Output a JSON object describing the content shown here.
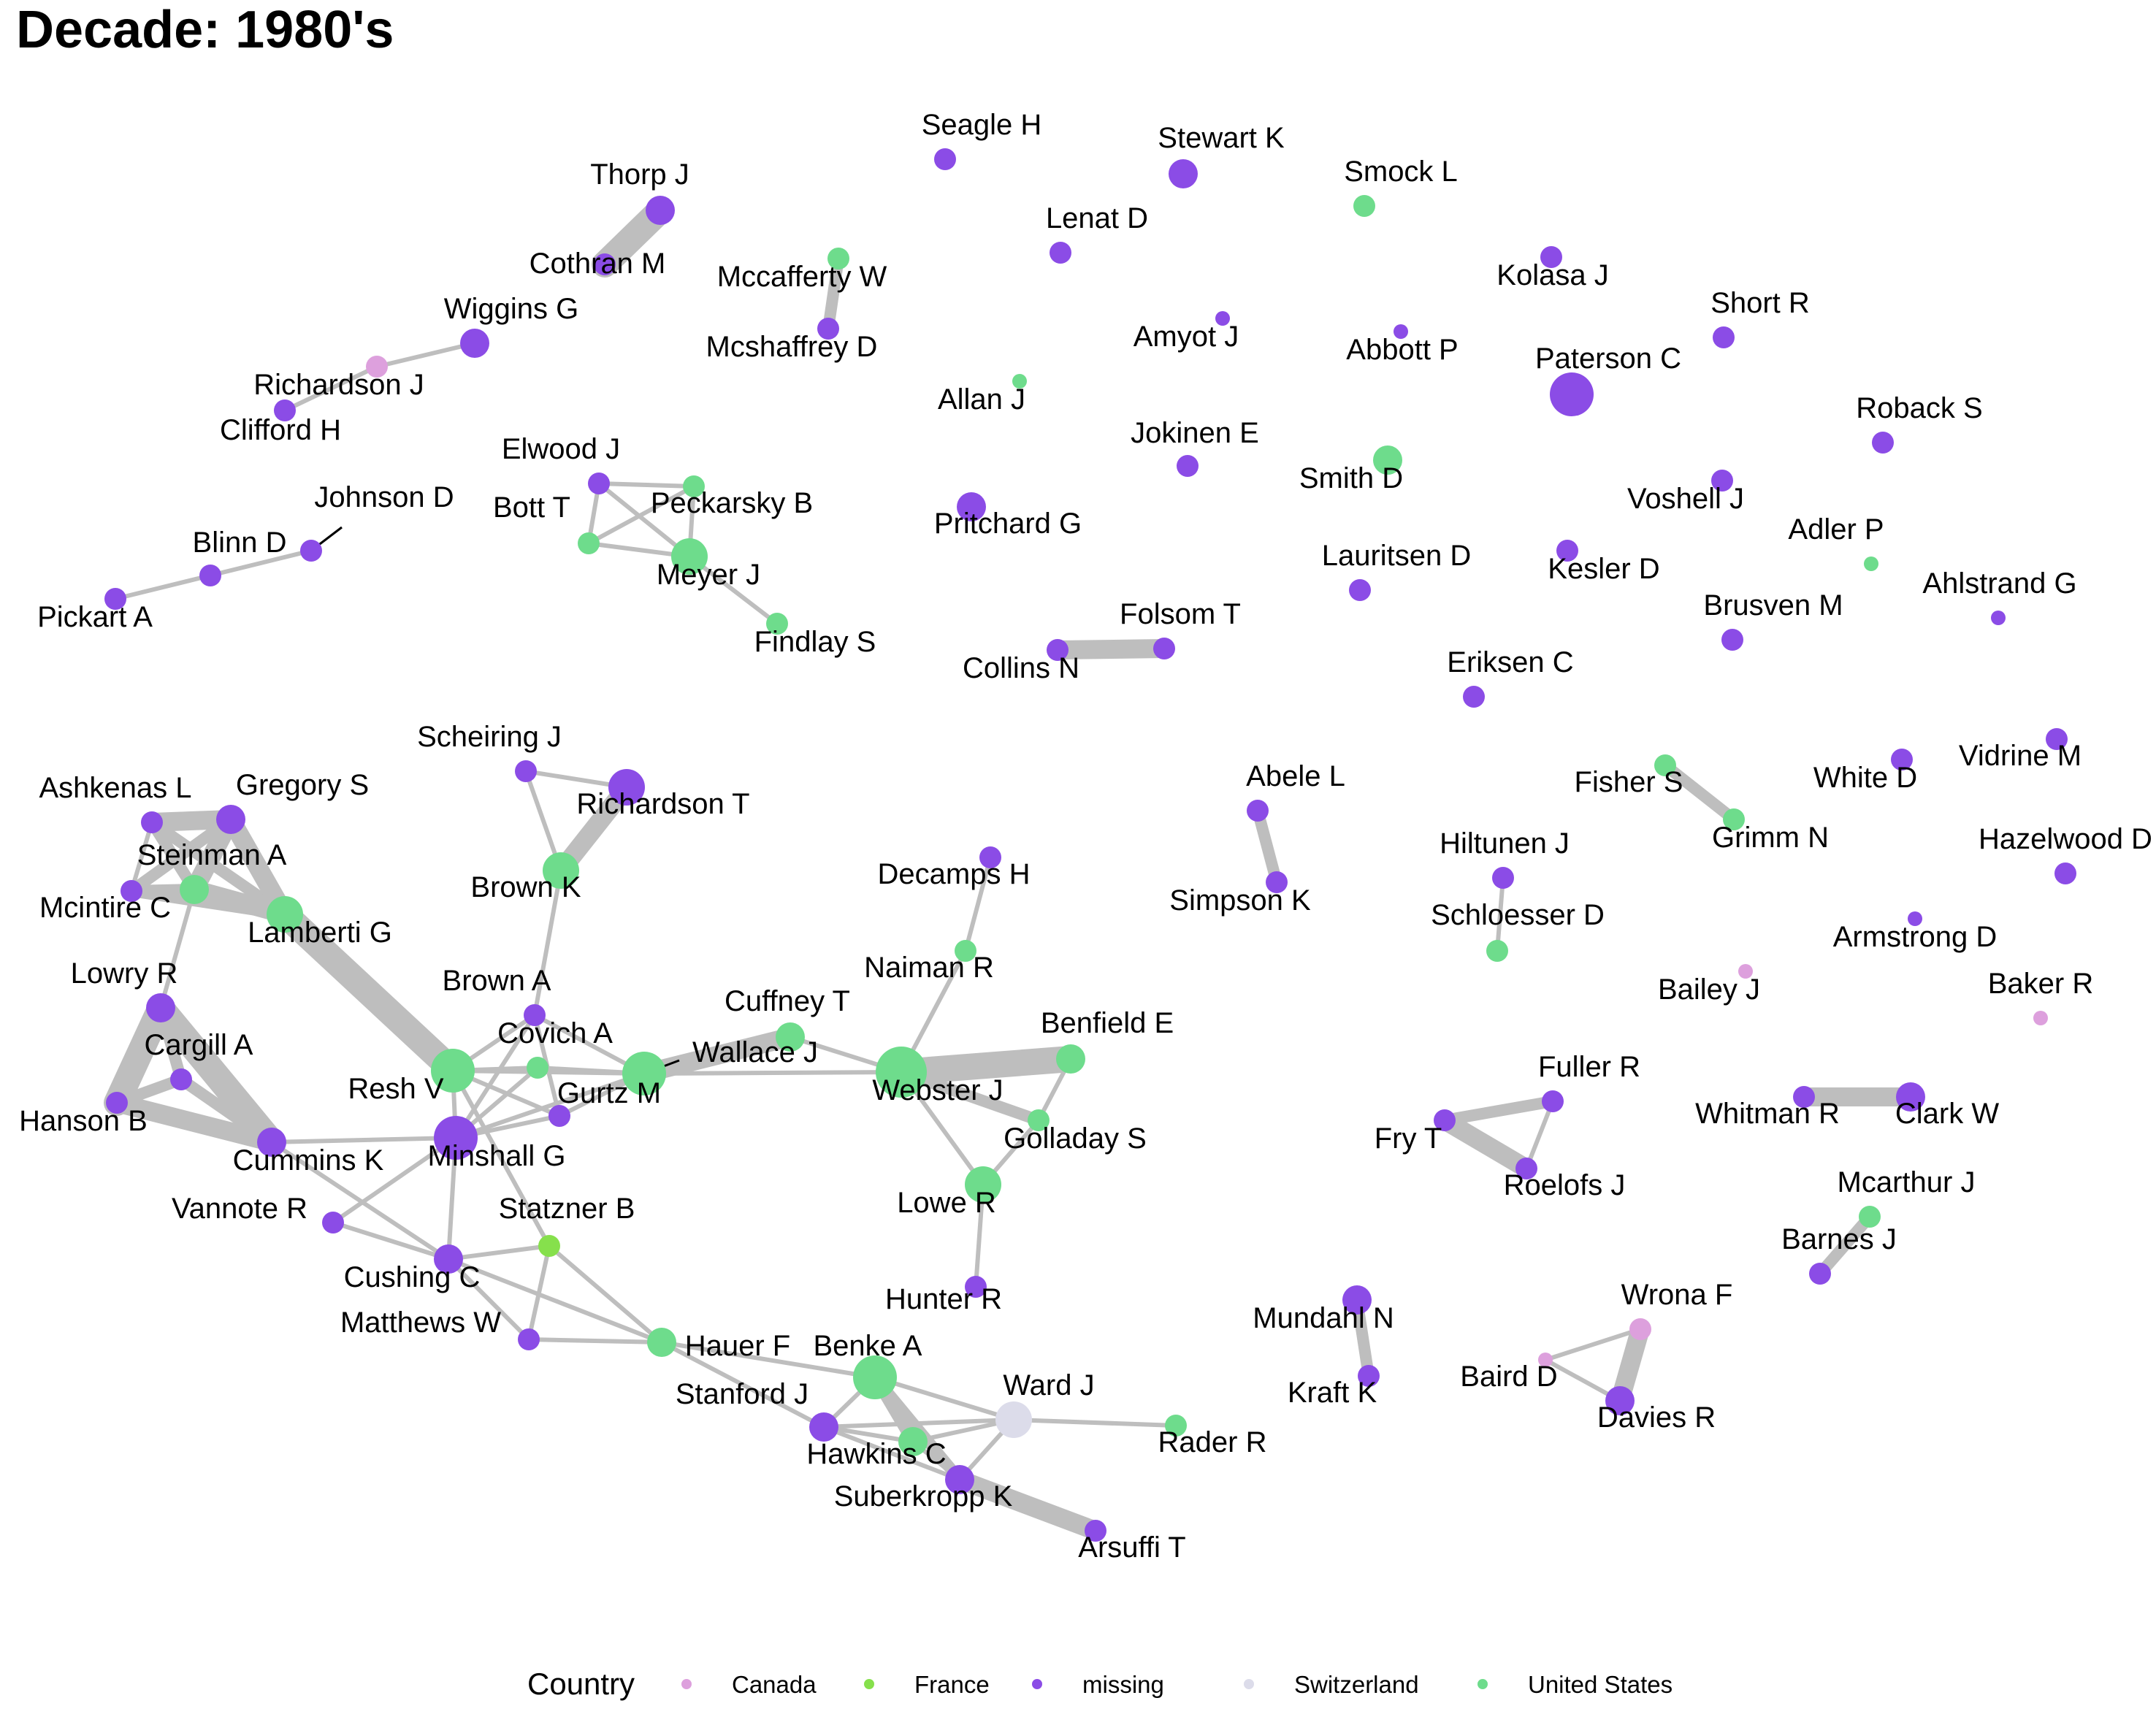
{
  "title": "Decade: 1980's",
  "colors": {
    "Canada": "#dda0dd",
    "France": "#86e04c",
    "missing": "#8b4ce6",
    "Switzerland": "#dcdcea",
    "United States": "#6edc8c",
    "edge": "#bebebe"
  },
  "legend": {
    "title": "Country",
    "items": [
      {
        "label": "Canada",
        "color": "#dda0dd"
      },
      {
        "label": "France",
        "color": "#86e04c"
      },
      {
        "label": "missing",
        "color": "#8b4ce6"
      },
      {
        "label": "Switzerland",
        "color": "#dcdcea"
      },
      {
        "label": "United States",
        "color": "#6edc8c"
      }
    ]
  },
  "nodes": [
    {
      "id": "Thorp J",
      "country": "missing",
      "size": 3
    },
    {
      "id": "Cothran M",
      "country": "missing",
      "size": 2
    },
    {
      "id": "Wiggins G",
      "country": "missing",
      "size": 3
    },
    {
      "id": "Richardson J",
      "country": "Canada",
      "size": 2
    },
    {
      "id": "Clifford H",
      "country": "missing",
      "size": 2
    },
    {
      "id": "Johnson D",
      "country": "missing",
      "size": 2
    },
    {
      "id": "Blinn D",
      "country": "missing",
      "size": 2
    },
    {
      "id": "Pickart A",
      "country": "missing",
      "size": 2
    },
    {
      "id": "Mccafferty W",
      "country": "United States",
      "size": 2
    },
    {
      "id": "Mcshaffrey D",
      "country": "missing",
      "size": 2
    },
    {
      "id": "Elwood J",
      "country": "missing",
      "size": 2
    },
    {
      "id": "Bott T",
      "country": "United States",
      "size": 2
    },
    {
      "id": "Peckarsky B",
      "country": "United States",
      "size": 2
    },
    {
      "id": "Meyer J",
      "country": "United States",
      "size": 4
    },
    {
      "id": "Findlay S",
      "country": "United States",
      "size": 2
    },
    {
      "id": "Seagle H",
      "country": "missing",
      "size": 2
    },
    {
      "id": "Stewart K",
      "country": "missing",
      "size": 3
    },
    {
      "id": "Smock L",
      "country": "United States",
      "size": 2
    },
    {
      "id": "Lenat D",
      "country": "missing",
      "size": 2
    },
    {
      "id": "Kolasa J",
      "country": "missing",
      "size": 2
    },
    {
      "id": "Amyot J",
      "country": "missing",
      "size": 1
    },
    {
      "id": "Abbott P",
      "country": "missing",
      "size": 1
    },
    {
      "id": "Short R",
      "country": "missing",
      "size": 2
    },
    {
      "id": "Allan J",
      "country": "United States",
      "size": 1
    },
    {
      "id": "Paterson C",
      "country": "missing",
      "size": 5
    },
    {
      "id": "Roback S",
      "country": "missing",
      "size": 2
    },
    {
      "id": "Jokinen E",
      "country": "missing",
      "size": 2
    },
    {
      "id": "Smith D",
      "country": "United States",
      "size": 3
    },
    {
      "id": "Voshell J",
      "country": "missing",
      "size": 2
    },
    {
      "id": "Pritchard G",
      "country": "missing",
      "size": 3
    },
    {
      "id": "Adler P",
      "country": "United States",
      "size": 1
    },
    {
      "id": "Lauritsen D",
      "country": "missing",
      "size": 2
    },
    {
      "id": "Kesler D",
      "country": "missing",
      "size": 2
    },
    {
      "id": "Ahlstrand G",
      "country": "missing",
      "size": 1
    },
    {
      "id": "Folsom T",
      "country": "missing",
      "size": 2
    },
    {
      "id": "Collins N",
      "country": "missing",
      "size": 2
    },
    {
      "id": "Brusven M",
      "country": "missing",
      "size": 2
    },
    {
      "id": "Eriksen C",
      "country": "missing",
      "size": 2
    },
    {
      "id": "Scheiring J",
      "country": "missing",
      "size": 2
    },
    {
      "id": "Richardson T",
      "country": "missing",
      "size": 4
    },
    {
      "id": "Brown K",
      "country": "United States",
      "size": 4
    },
    {
      "id": "Ashkenas L",
      "country": "missing",
      "size": 2
    },
    {
      "id": "Gregory S",
      "country": "missing",
      "size": 3
    },
    {
      "id": "Steinman A",
      "country": "United States",
      "size": 3
    },
    {
      "id": "Mcintire C",
      "country": "missing",
      "size": 2
    },
    {
      "id": "Lamberti G",
      "country": "United States",
      "size": 4
    },
    {
      "id": "Lowry R",
      "country": "missing",
      "size": 3
    },
    {
      "id": "Cargill A",
      "country": "missing",
      "size": 2
    },
    {
      "id": "Hanson B",
      "country": "missing",
      "size": 2
    },
    {
      "id": "Cummins K",
      "country": "missing",
      "size": 3
    },
    {
      "id": "Vannote R",
      "country": "missing",
      "size": 2
    },
    {
      "id": "Brown A",
      "country": "missing",
      "size": 2
    },
    {
      "id": "Covich A",
      "country": "United States",
      "size": 2
    },
    {
      "id": "Resh V",
      "country": "United States",
      "size": 5
    },
    {
      "id": "Gurtz M",
      "country": "missing",
      "size": 2
    },
    {
      "id": "Minshall G",
      "country": "missing",
      "size": 5
    },
    {
      "id": "Wallace J",
      "country": "United States",
      "size": 5
    },
    {
      "id": "Cuffney T",
      "country": "United States",
      "size": 3
    },
    {
      "id": "Decamps H",
      "country": "missing",
      "size": 2
    },
    {
      "id": "Naiman R",
      "country": "United States",
      "size": 2
    },
    {
      "id": "Webster J",
      "country": "United States",
      "size": 6
    },
    {
      "id": "Benfield E",
      "country": "United States",
      "size": 3
    },
    {
      "id": "Golladay S",
      "country": "United States",
      "size": 2
    },
    {
      "id": "Lowe R",
      "country": "United States",
      "size": 4
    },
    {
      "id": "Hunter R",
      "country": "missing",
      "size": 2
    },
    {
      "id": "Statzner B",
      "country": "France",
      "size": 2
    },
    {
      "id": "Cushing C",
      "country": "missing",
      "size": 3
    },
    {
      "id": "Matthews W",
      "country": "missing",
      "size": 2
    },
    {
      "id": "Hauer F",
      "country": "United States",
      "size": 3
    },
    {
      "id": "Benke A",
      "country": "United States",
      "size": 5
    },
    {
      "id": "Stanford J",
      "country": "missing",
      "size": 3
    },
    {
      "id": "Ward J",
      "country": "Switzerland",
      "size": 4
    },
    {
      "id": "Rader R",
      "country": "United States",
      "size": 2
    },
    {
      "id": "Hawkins C",
      "country": "United States",
      "size": 3
    },
    {
      "id": "Suberkropp K",
      "country": "missing",
      "size": 3
    },
    {
      "id": "Arsuffi T",
      "country": "missing",
      "size": 2
    },
    {
      "id": "Abele L",
      "country": "missing",
      "size": 2
    },
    {
      "id": "Simpson K",
      "country": "missing",
      "size": 2
    },
    {
      "id": "Hiltunen J",
      "country": "missing",
      "size": 2
    },
    {
      "id": "Schloesser D",
      "country": "United States",
      "size": 2
    },
    {
      "id": "Fisher S",
      "country": "United States",
      "size": 2
    },
    {
      "id": "Grimm N",
      "country": "United States",
      "size": 2
    },
    {
      "id": "White D",
      "country": "missing",
      "size": 2
    },
    {
      "id": "Vidrine M",
      "country": "missing",
      "size": 2
    },
    {
      "id": "Hazelwood D",
      "country": "missing",
      "size": 2
    },
    {
      "id": "Armstrong D",
      "country": "missing",
      "size": 1
    },
    {
      "id": "Bailey J",
      "country": "Canada",
      "size": 1
    },
    {
      "id": "Baker R",
      "country": "Canada",
      "size": 1
    },
    {
      "id": "Fuller R",
      "country": "missing",
      "size": 2
    },
    {
      "id": "Fry T",
      "country": "missing",
      "size": 2
    },
    {
      "id": "Roelofs J",
      "country": "missing",
      "size": 2
    },
    {
      "id": "Whitman R",
      "country": "missing",
      "size": 2
    },
    {
      "id": "Clark W",
      "country": "missing",
      "size": 3
    },
    {
      "id": "Mcarthur J",
      "country": "United States",
      "size": 2
    },
    {
      "id": "Barnes J",
      "country": "missing",
      "size": 2
    },
    {
      "id": "Mundahl N",
      "country": "missing",
      "size": 3
    },
    {
      "id": "Kraft K",
      "country": "missing",
      "size": 2
    },
    {
      "id": "Wrona F",
      "country": "Canada",
      "size": 2
    },
    {
      "id": "Baird D",
      "country": "Canada",
      "size": 1
    },
    {
      "id": "Davies R",
      "country": "missing",
      "size": 3
    }
  ],
  "edges": [
    {
      "source": "Thorp J",
      "target": "Cothran M",
      "weight": 4
    },
    {
      "source": "Wiggins G",
      "target": "Richardson J",
      "weight": 1
    },
    {
      "source": "Richardson J",
      "target": "Clifford H",
      "weight": 1
    },
    {
      "source": "Johnson D",
      "target": "Blinn D",
      "weight": 1
    },
    {
      "source": "Blinn D",
      "target": "Pickart A",
      "weight": 1
    },
    {
      "source": "Mccafferty W",
      "target": "Mcshaffrey D",
      "weight": 2
    },
    {
      "source": "Elwood J",
      "target": "Bott T",
      "weight": 1
    },
    {
      "source": "Elwood J",
      "target": "Peckarsky B",
      "weight": 1
    },
    {
      "source": "Elwood J",
      "target": "Meyer J",
      "weight": 1
    },
    {
      "source": "Bott T",
      "target": "Peckarsky B",
      "weight": 1
    },
    {
      "source": "Bott T",
      "target": "Meyer J",
      "weight": 1
    },
    {
      "source": "Peckarsky B",
      "target": "Meyer J",
      "weight": 1
    },
    {
      "source": "Meyer J",
      "target": "Findlay S",
      "weight": 1
    },
    {
      "source": "Folsom T",
      "target": "Collins N",
      "weight": 3
    },
    {
      "source": "Scheiring J",
      "target": "Richardson T",
      "weight": 1
    },
    {
      "source": "Scheiring J",
      "target": "Brown K",
      "weight": 1
    },
    {
      "source": "Richardson T",
      "target": "Brown K",
      "weight": 3
    },
    {
      "source": "Brown K",
      "target": "Brown A",
      "weight": 1
    },
    {
      "source": "Ashkenas L",
      "target": "Gregory S",
      "weight": 3
    },
    {
      "source": "Ashkenas L",
      "target": "Steinman A",
      "weight": 2
    },
    {
      "source": "Ashkenas L",
      "target": "Mcintire C",
      "weight": 1
    },
    {
      "source": "Ashkenas L",
      "target": "Lamberti G",
      "weight": 2
    },
    {
      "source": "Gregory S",
      "target": "Steinman A",
      "weight": 3
    },
    {
      "source": "Gregory S",
      "target": "Mcintire C",
      "weight": 2
    },
    {
      "source": "Gregory S",
      "target": "Lamberti G",
      "weight": 3
    },
    {
      "source": "Steinman A",
      "target": "Mcintire C",
      "weight": 2
    },
    {
      "source": "Steinman A",
      "target": "Lamberti G",
      "weight": 3
    },
    {
      "source": "Steinman A",
      "target": "Lowry R",
      "weight": 1
    },
    {
      "source": "Mcintire C",
      "target": "Lamberti G",
      "weight": 2
    },
    {
      "source": "Lamberti G",
      "target": "Resh V",
      "weight": 4
    },
    {
      "source": "Lowry R",
      "target": "Hanson B",
      "weight": 4
    },
    {
      "source": "Lowry R",
      "target": "Cargill A",
      "weight": 2
    },
    {
      "source": "Lowry R",
      "target": "Cummins K",
      "weight": 4
    },
    {
      "source": "Cargill A",
      "target": "Hanson B",
      "weight": 2
    },
    {
      "source": "Cargill A",
      "target": "Cummins K",
      "weight": 2
    },
    {
      "source": "Hanson B",
      "target": "Cummins K",
      "weight": 3
    },
    {
      "source": "Cummins K",
      "target": "Minshall G",
      "weight": 1
    },
    {
      "source": "Cummins K",
      "target": "Cushing C",
      "weight": 1
    },
    {
      "source": "Vannote R",
      "target": "Minshall G",
      "weight": 1
    },
    {
      "source": "Vannote R",
      "target": "Cushing C",
      "weight": 1
    },
    {
      "source": "Brown A",
      "target": "Resh V",
      "weight": 1
    },
    {
      "source": "Brown A",
      "target": "Gurtz M",
      "weight": 1
    },
    {
      "source": "Brown A",
      "target": "Minshall G",
      "weight": 1
    },
    {
      "source": "Brown A",
      "target": "Wallace J",
      "weight": 1
    },
    {
      "source": "Covich A",
      "target": "Resh V",
      "weight": 1
    },
    {
      "source": "Covich A",
      "target": "Minshall G",
      "weight": 1
    },
    {
      "source": "Covich A",
      "target": "Wallace J",
      "weight": 1
    },
    {
      "source": "Resh V",
      "target": "Minshall G",
      "weight": 1
    },
    {
      "source": "Resh V",
      "target": "Gurtz M",
      "weight": 1
    },
    {
      "source": "Resh V",
      "target": "Wallace J",
      "weight": 1
    },
    {
      "source": "Resh V",
      "target": "Statzner B",
      "weight": 1
    },
    {
      "source": "Gurtz M",
      "target": "Minshall G",
      "weight": 1
    },
    {
      "source": "Gurtz M",
      "target": "Wallace J",
      "weight": 1
    },
    {
      "source": "Minshall G",
      "target": "Wallace J",
      "weight": 1
    },
    {
      "source": "Minshall G",
      "target": "Cushing C",
      "weight": 1
    },
    {
      "source": "Wallace J",
      "target": "Cuffney T",
      "weight": 3
    },
    {
      "source": "Wallace J",
      "target": "Webster J",
      "weight": 1
    },
    {
      "source": "Cuffney T",
      "target": "Webster J",
      "weight": 1
    },
    {
      "source": "Decamps H",
      "target": "Naiman R",
      "weight": 1
    },
    {
      "source": "Naiman R",
      "target": "Webster J",
      "weight": 1
    },
    {
      "source": "Webster J",
      "target": "Benfield E",
      "weight": 4
    },
    {
      "source": "Webster J",
      "target": "Golladay S",
      "weight": 2
    },
    {
      "source": "Webster J",
      "target": "Lowe R",
      "weight": 1
    },
    {
      "source": "Benfield E",
      "target": "Golladay S",
      "weight": 1
    },
    {
      "source": "Golladay S",
      "target": "Lowe R",
      "weight": 1
    },
    {
      "source": "Lowe R",
      "target": "Hunter R",
      "weight": 1
    },
    {
      "source": "Cushing C",
      "target": "Statzner B",
      "weight": 1
    },
    {
      "source": "Cushing C",
      "target": "Matthews W",
      "weight": 1
    },
    {
      "source": "Cushing C",
      "target": "Hauer F",
      "weight": 1
    },
    {
      "source": "Statzner B",
      "target": "Matthews W",
      "weight": 1
    },
    {
      "source": "Statzner B",
      "target": "Hauer F",
      "weight": 1
    },
    {
      "source": "Matthews W",
      "target": "Hauer F",
      "weight": 1
    },
    {
      "source": "Hauer F",
      "target": "Benke A",
      "weight": 1
    },
    {
      "source": "Hauer F",
      "target": "Stanford J",
      "weight": 1
    },
    {
      "source": "Benke A",
      "target": "Stanford J",
      "weight": 1
    },
    {
      "source": "Benke A",
      "target": "Ward J",
      "weight": 1
    },
    {
      "source": "Benke A",
      "target": "Hawkins C",
      "weight": 2
    },
    {
      "source": "Benke A",
      "target": "Suberkropp K",
      "weight": 2
    },
    {
      "source": "Stanford J",
      "target": "Ward J",
      "weight": 1
    },
    {
      "source": "Stanford J",
      "target": "Hawkins C",
      "weight": 1
    },
    {
      "source": "Stanford J",
      "target": "Suberkropp K",
      "weight": 1
    },
    {
      "source": "Ward J",
      "target": "Rader R",
      "weight": 1
    },
    {
      "source": "Ward J",
      "target": "Hawkins C",
      "weight": 1
    },
    {
      "source": "Ward J",
      "target": "Suberkropp K",
      "weight": 1
    },
    {
      "source": "Hawkins C",
      "target": "Suberkropp K",
      "weight": 1
    },
    {
      "source": "Suberkropp K",
      "target": "Arsuffi T",
      "weight": 3
    },
    {
      "source": "Abele L",
      "target": "Simpson K",
      "weight": 2
    },
    {
      "source": "Hiltunen J",
      "target": "Schloesser D",
      "weight": 1
    },
    {
      "source": "Fisher S",
      "target": "Grimm N",
      "weight": 2
    },
    {
      "source": "Fuller R",
      "target": "Fry T",
      "weight": 2
    },
    {
      "source": "Fry T",
      "target": "Roelofs J",
      "weight": 3
    },
    {
      "source": "Fuller R",
      "target": "Roelofs J",
      "weight": 1
    },
    {
      "source": "Whitman R",
      "target": "Clark W",
      "weight": 3
    },
    {
      "source": "Mcarthur J",
      "target": "Barnes J",
      "weight": 2
    },
    {
      "source": "Mundahl N",
      "target": "Kraft K",
      "weight": 2
    },
    {
      "source": "Wrona F",
      "target": "Davies R",
      "weight": 3
    },
    {
      "source": "Wrona F",
      "target": "Baird D",
      "weight": 1
    },
    {
      "source": "Baird D",
      "target": "Davies R",
      "weight": 1
    }
  ]
}
